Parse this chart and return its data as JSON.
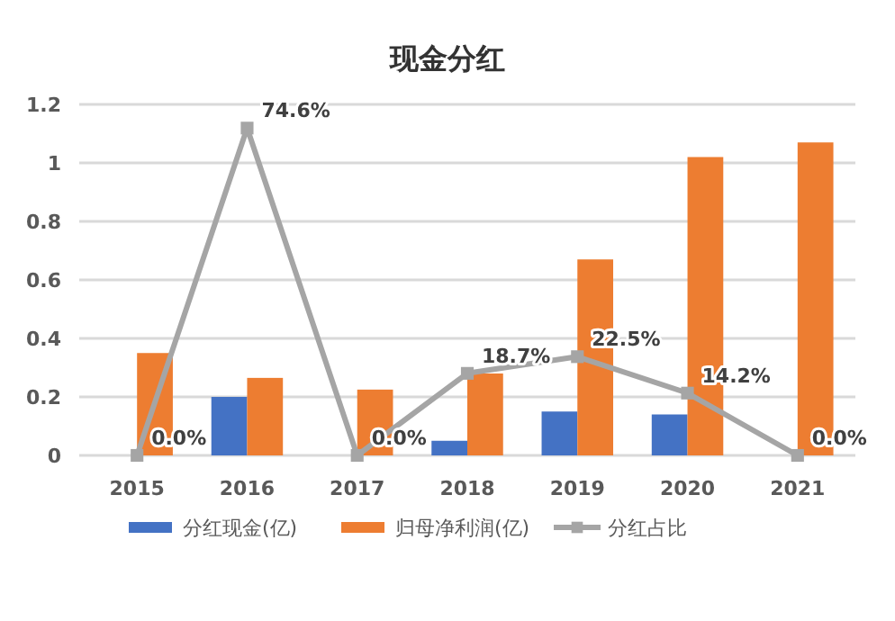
{
  "chart_data": {
    "type": "bar",
    "title": "现金分红",
    "categories": [
      "2015",
      "2016",
      "2017",
      "2018",
      "2019",
      "2020",
      "2021"
    ],
    "ylim": [
      0,
      1.2
    ],
    "yticks": [
      0,
      0.2,
      0.4,
      0.6,
      0.8,
      1,
      1.2
    ],
    "y2lim": [
      0,
      80
    ],
    "grid": "y",
    "legend": "bottom",
    "marker": "square",
    "series": [
      {
        "name": "分红现金(亿)",
        "color": "#4472c4",
        "values": [
          0,
          0.2,
          0,
          0.05,
          0.15,
          0.14,
          0
        ]
      },
      {
        "name": "归母净利润(亿)",
        "color": "#ed7d31",
        "values": [
          0.35,
          0.265,
          0.225,
          0.28,
          0.67,
          1.02,
          1.07
        ]
      },
      {
        "name": "分红占比",
        "type": "line",
        "axis": "y2",
        "color": "#a5a5a5",
        "values": [
          0,
          74.6,
          0,
          18.7,
          22.5,
          14.2,
          0
        ],
        "value_labels": [
          "0.0%",
          "74.6%",
          "0.0%",
          "18.7%",
          "22.5%",
          "14.2%",
          "0.0%"
        ]
      }
    ]
  }
}
